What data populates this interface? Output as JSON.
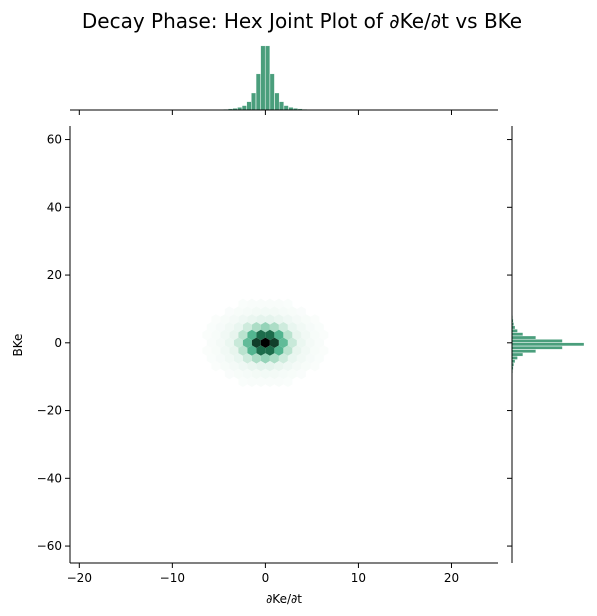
{
  "chart_data": {
    "type": "heatmap",
    "subtype": "hex-joint-plot",
    "title": "Decay Phase: Hex Joint Plot of ∂Ke/∂t vs BKe",
    "xlabel": "∂Ke/∂t",
    "ylabel": "BKe",
    "xlim": [
      -21,
      25
    ],
    "ylim": [
      -65,
      64
    ],
    "xticks": [
      -20,
      -10,
      0,
      10,
      20
    ],
    "xtick_labels": [
      "−20",
      "−10",
      "0",
      "10",
      "20"
    ],
    "yticks": [
      -60,
      -40,
      -20,
      0,
      20,
      40,
      60
    ],
    "ytick_labels": [
      "−60",
      "−40",
      "−20",
      "0",
      "20",
      "40",
      "60"
    ],
    "grid": false,
    "colormap": [
      "#ffffff",
      "#e7f5ee",
      "#a9dcc4",
      "#4fb38d",
      "#1f7a55",
      "#0d2f20",
      "#000000"
    ],
    "marginal_color": "#4a9e7c",
    "density_center": [
      0,
      0
    ],
    "x_spread": 2.0,
    "y_spread": 4.0,
    "x_marginal": {
      "bins": [
        -1.5,
        -1.0,
        -0.5,
        0.0,
        0.5,
        1.0,
        1.5,
        2.0,
        3.0,
        4.0,
        5.0,
        7.0
      ],
      "heights": [
        0.55,
        0.72,
        0.92,
        1.0,
        0.78,
        0.55,
        0.38,
        0.25,
        0.14,
        0.07,
        0.03,
        0.01
      ]
    },
    "y_marginal": {
      "bins": [
        -3.0,
        -2.0,
        -1.0,
        0.0,
        1.0,
        2.0,
        3.0,
        5.0,
        8.0,
        12.0,
        18.0,
        25.0
      ],
      "heights": [
        0.62,
        0.82,
        0.95,
        1.0,
        0.72,
        0.48,
        0.32,
        0.18,
        0.08,
        0.04,
        0.015,
        0.005
      ]
    }
  }
}
